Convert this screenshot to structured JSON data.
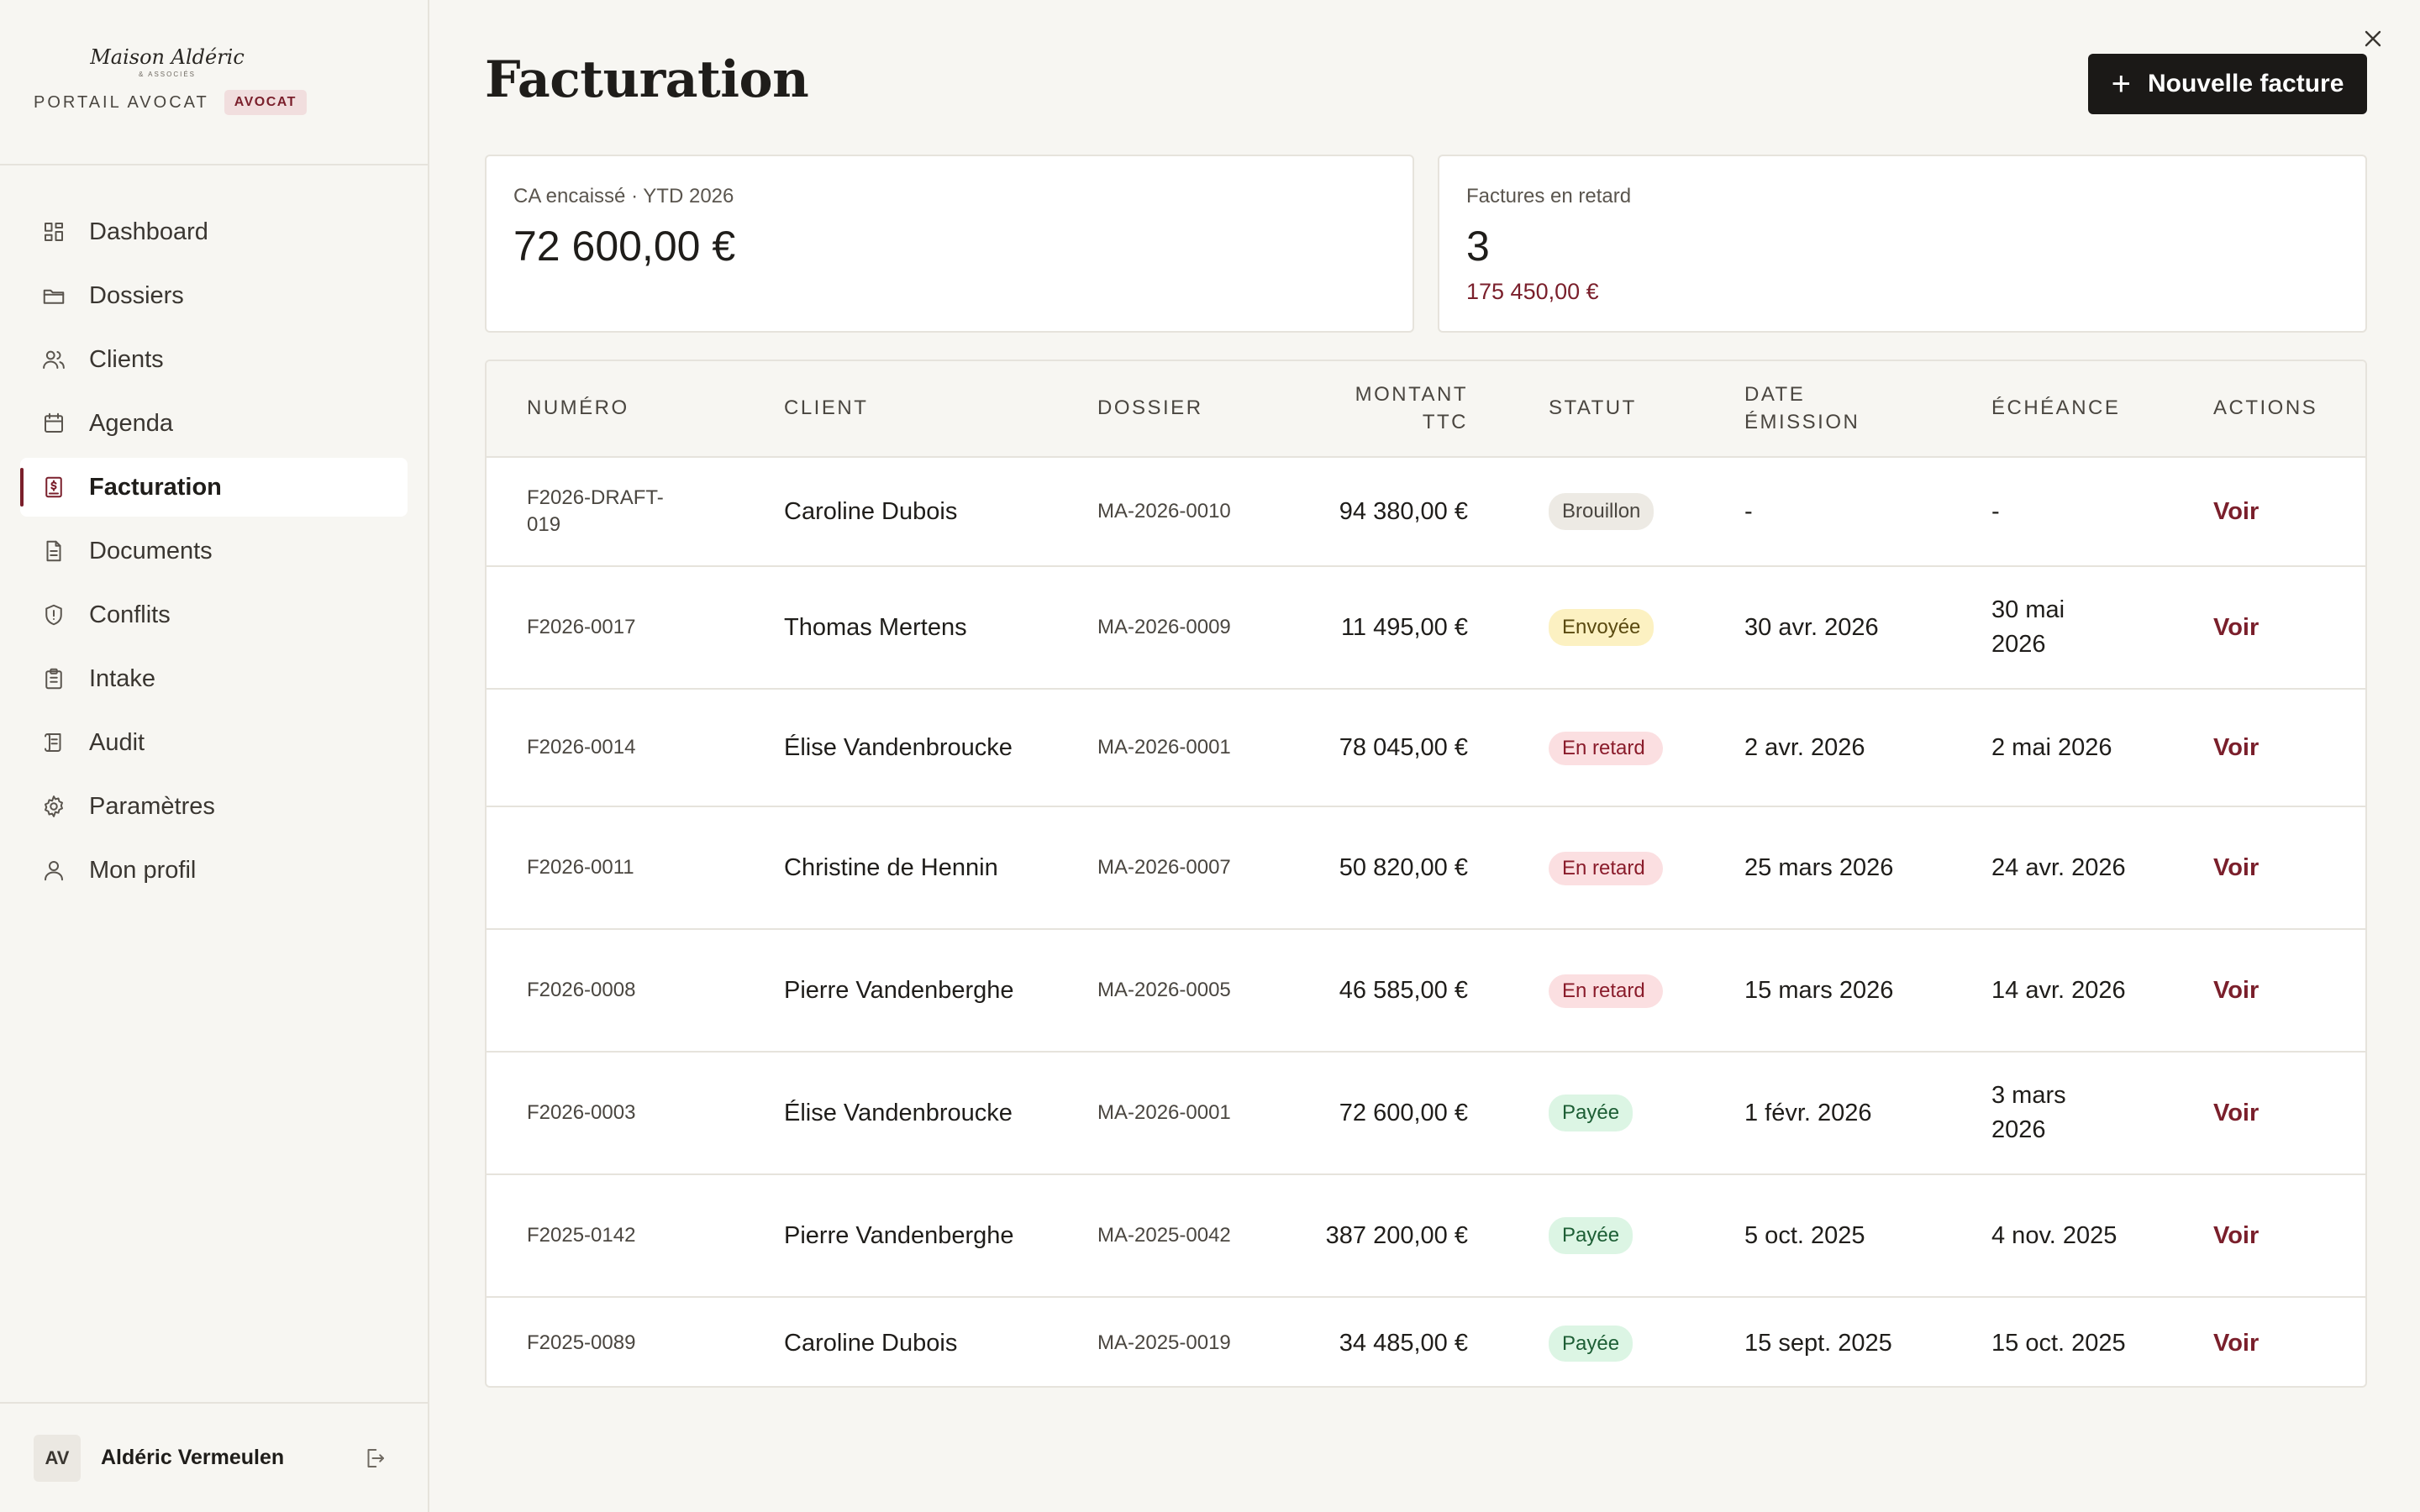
{
  "brand": {
    "name": "Maison Aldéric",
    "sub": "& ASSOCIÉS",
    "portal": "PORTAIL AVOCAT",
    "role": "AVOCAT"
  },
  "nav": [
    {
      "label": "Dashboard",
      "icon": "dashboard-icon"
    },
    {
      "label": "Dossiers",
      "icon": "folder-icon"
    },
    {
      "label": "Clients",
      "icon": "users-icon"
    },
    {
      "label": "Agenda",
      "icon": "calendar-icon"
    },
    {
      "label": "Facturation",
      "icon": "invoice-icon",
      "active": true
    },
    {
      "label": "Documents",
      "icon": "document-icon"
    },
    {
      "label": "Conflits",
      "icon": "shield-icon"
    },
    {
      "label": "Intake",
      "icon": "clipboard-icon"
    },
    {
      "label": "Audit",
      "icon": "scroll-icon"
    },
    {
      "label": "Paramètres",
      "icon": "gear-icon"
    },
    {
      "label": "Mon profil",
      "icon": "user-icon"
    }
  ],
  "user": {
    "initials": "AV",
    "name": "Aldéric Vermeulen"
  },
  "page": {
    "title": "Facturation",
    "new_button": "Nouvelle facture"
  },
  "cards": {
    "revenue": {
      "label": "CA encaissé · YTD 2026",
      "value": "72 600,00 €"
    },
    "overdue": {
      "label": "Factures en retard",
      "value": "3",
      "sub": "175 450,00 €"
    }
  },
  "table": {
    "headers": {
      "numero": "NUMÉRO",
      "client": "CLIENT",
      "dossier": "DOSSIER",
      "montant_1": "MONTANT",
      "montant_2": "TTC",
      "statut": "STATUT",
      "date_1": "DATE",
      "date_2": "ÉMISSION",
      "echeance": "ÉCHÉANCE",
      "actions": "ACTIONS"
    },
    "rows": [
      {
        "numero": "F2026-DRAFT-019",
        "client": "Caroline Dubois",
        "dossier": "MA-2026-0010",
        "montant": "94 380,00 €",
        "statut": "Brouillon",
        "kind": "draft",
        "emission": "-",
        "echeance": "-",
        "action": "Voir"
      },
      {
        "numero": "F2026-0017",
        "client": "Thomas Mertens",
        "dossier": "MA-2026-0009",
        "montant": "11 495,00 €",
        "statut": "Envoyée",
        "kind": "sent",
        "emission": "30 avr. 2026",
        "echeance": "30 mai 2026",
        "action": "Voir"
      },
      {
        "numero": "F2026-0014",
        "client": "Élise Vandenbroucke",
        "dossier": "MA-2026-0001",
        "montant": "78 045,00 €",
        "statut": "En retard",
        "kind": "late",
        "emission": "2 avr. 2026",
        "echeance": "2 mai 2026",
        "action": "Voir"
      },
      {
        "numero": "F2026-0011",
        "client": "Christine de Hennin",
        "dossier": "MA-2026-0007",
        "montant": "50 820,00 €",
        "statut": "En retard",
        "kind": "late",
        "emission": "25 mars 2026",
        "echeance": "24 avr. 2026",
        "action": "Voir"
      },
      {
        "numero": "F2026-0008",
        "client": "Pierre Vandenberghe",
        "dossier": "MA-2026-0005",
        "montant": "46 585,00 €",
        "statut": "En retard",
        "kind": "late",
        "emission": "15 mars 2026",
        "echeance": "14 avr. 2026",
        "action": "Voir"
      },
      {
        "numero": "F2026-0003",
        "client": "Élise Vandenbroucke",
        "dossier": "MA-2026-0001",
        "montant": "72 600,00 €",
        "statut": "Payée",
        "kind": "paid",
        "emission": "1 févr. 2026",
        "echeance": "3 mars 2026",
        "action": "Voir"
      },
      {
        "numero": "F2025-0142",
        "client": "Pierre Vandenberghe",
        "dossier": "MA-2025-0042",
        "montant": "387 200,00 €",
        "statut": "Payée",
        "kind": "paid",
        "emission": "5 oct. 2025",
        "echeance": "4 nov. 2025",
        "action": "Voir"
      },
      {
        "numero": "F2025-0089",
        "client": "Caroline Dubois",
        "dossier": "MA-2025-0019",
        "montant": "34 485,00 €",
        "statut": "Payée",
        "kind": "paid",
        "emission": "15 sept. 2025",
        "echeance": "15 oct. 2025",
        "action": "Voir"
      }
    ]
  },
  "colors": {
    "accent": "#7a1f2b",
    "background": "#f7f6f2",
    "button": "#1b1917"
  }
}
